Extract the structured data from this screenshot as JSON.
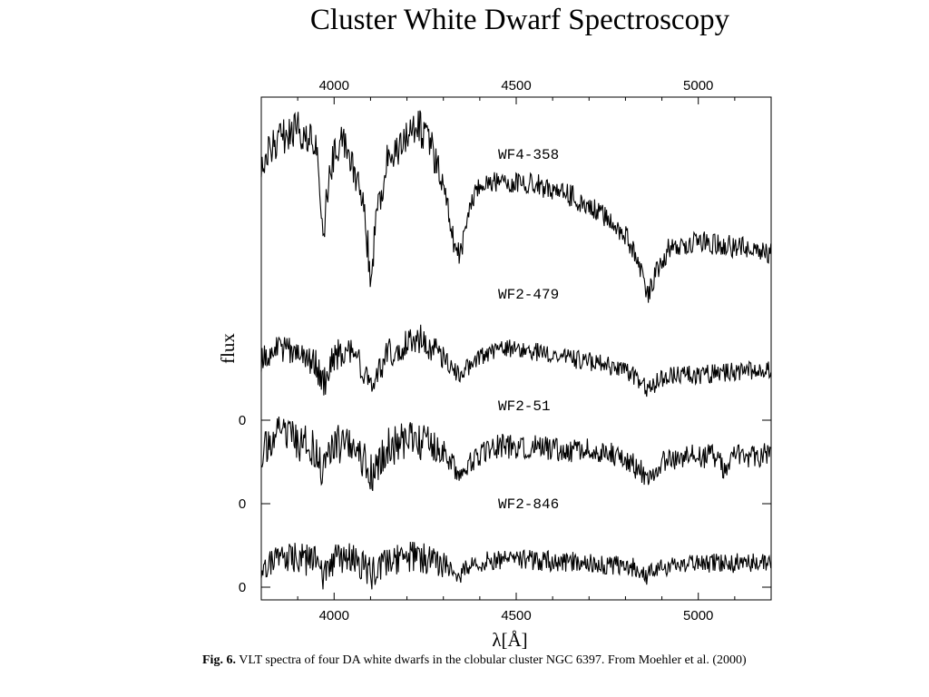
{
  "slide": {
    "title": "Cluster White Dwarf Spectroscopy"
  },
  "caption": {
    "prefix": "Fig. 6.",
    "text": "VLT spectra of four DA white dwarfs in the clobular cluster NGC 6397. From Moehler et al. (2000)"
  },
  "chart_data": {
    "type": "line",
    "title": "",
    "xlabel": "λ[Å]",
    "ylabel": "flux",
    "xlim": [
      3800,
      5200
    ],
    "x_ticks": [
      4000,
      4500,
      5000
    ],
    "x_tick_labels": [
      "4000",
      "4500",
      "5000"
    ],
    "zero_labels": [
      "0",
      "0",
      "0"
    ],
    "grid": false,
    "legend": "none",
    "line_color": "#000000",
    "series": [
      {
        "name": "WF4-358",
        "x": [
          3800,
          3850,
          3900,
          3950,
          3970,
          3990,
          4020,
          4050,
          4080,
          4100,
          4120,
          4150,
          4180,
          4200,
          4230,
          4260,
          4290,
          4310,
          4330,
          4345,
          4360,
          4380,
          4400,
          4450,
          4500,
          4550,
          4600,
          4650,
          4700,
          4750,
          4800,
          4830,
          4861,
          4890,
          4920,
          4950,
          5000,
          5050,
          5100,
          5150,
          5200
        ],
        "y": [
          0.72,
          0.82,
          0.86,
          0.78,
          0.4,
          0.7,
          0.84,
          0.72,
          0.55,
          0.22,
          0.5,
          0.76,
          0.78,
          0.82,
          0.88,
          0.8,
          0.7,
          0.55,
          0.35,
          0.32,
          0.4,
          0.56,
          0.62,
          0.64,
          0.63,
          0.62,
          0.6,
          0.57,
          0.53,
          0.47,
          0.4,
          0.3,
          0.14,
          0.26,
          0.34,
          0.36,
          0.37,
          0.36,
          0.35,
          0.34,
          0.32
        ]
      },
      {
        "name": "WF2-479",
        "x": [
          3800,
          3850,
          3900,
          3950,
          3970,
          4000,
          4050,
          4102,
          4150,
          4200,
          4230,
          4260,
          4300,
          4340,
          4380,
          4420,
          4450,
          4500,
          4550,
          4600,
          4650,
          4700,
          4750,
          4800,
          4830,
          4861,
          4890,
          4920,
          4950,
          5000,
          5050,
          5100,
          5150,
          5200
        ],
        "y": [
          0.5,
          0.58,
          0.55,
          0.45,
          0.3,
          0.52,
          0.56,
          0.32,
          0.55,
          0.6,
          0.66,
          0.58,
          0.52,
          0.38,
          0.46,
          0.54,
          0.58,
          0.57,
          0.55,
          0.53,
          0.5,
          0.48,
          0.45,
          0.42,
          0.36,
          0.28,
          0.33,
          0.37,
          0.38,
          0.38,
          0.39,
          0.4,
          0.41,
          0.42
        ]
      },
      {
        "name": "WF2-51",
        "x": [
          3800,
          3850,
          3900,
          3950,
          3970,
          4000,
          4050,
          4102,
          4150,
          4200,
          4250,
          4300,
          4340,
          4380,
          4420,
          4450,
          4500,
          4550,
          4600,
          4650,
          4700,
          4750,
          4800,
          4830,
          4861,
          4890,
          4920,
          4950,
          5000,
          5050,
          5075,
          5100,
          5150,
          5200
        ],
        "y": [
          0.4,
          0.5,
          0.46,
          0.4,
          0.25,
          0.44,
          0.45,
          0.24,
          0.42,
          0.47,
          0.46,
          0.42,
          0.22,
          0.34,
          0.4,
          0.43,
          0.42,
          0.42,
          0.41,
          0.4,
          0.4,
          0.38,
          0.34,
          0.28,
          0.22,
          0.29,
          0.33,
          0.34,
          0.36,
          0.36,
          0.24,
          0.35,
          0.36,
          0.37
        ]
      },
      {
        "name": "WF2-846",
        "x": [
          3800,
          3850,
          3900,
          3950,
          3970,
          4000,
          4050,
          4102,
          4150,
          4200,
          4250,
          4300,
          4340,
          4380,
          4420,
          4450,
          4500,
          4550,
          4600,
          4650,
          4700,
          4750,
          4800,
          4830,
          4861,
          4890,
          4920,
          4950,
          5000,
          5050,
          5100,
          5150,
          5200
        ],
        "y": [
          0.28,
          0.36,
          0.32,
          0.3,
          0.18,
          0.31,
          0.32,
          0.2,
          0.3,
          0.33,
          0.33,
          0.3,
          0.2,
          0.27,
          0.3,
          0.32,
          0.31,
          0.31,
          0.3,
          0.3,
          0.29,
          0.28,
          0.27,
          0.24,
          0.19,
          0.23,
          0.26,
          0.27,
          0.28,
          0.29,
          0.29,
          0.3,
          0.3
        ]
      }
    ]
  }
}
